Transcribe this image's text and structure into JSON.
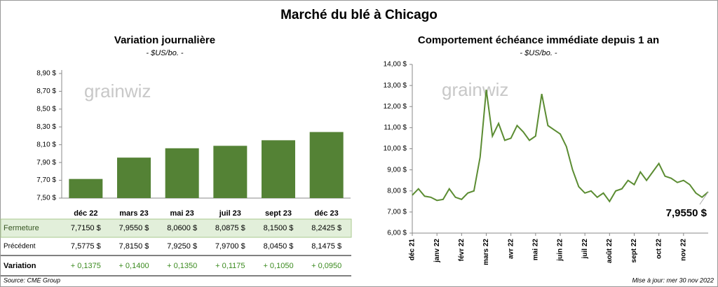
{
  "title": "Marché du blé à Chicago",
  "chart_data": [
    {
      "type": "bar",
      "title": "Variation journalière",
      "subtitle": "- $US/bo. -",
      "watermark": "grainwiz",
      "categories": [
        "déc 22",
        "mars 23",
        "mai 23",
        "juil 23",
        "sept 23",
        "déc 23"
      ],
      "values": [
        7.715,
        7.955,
        8.06,
        8.0875,
        8.15,
        8.2425
      ],
      "color": "#548235",
      "ylim": [
        7.5,
        8.9
      ],
      "yticks": [
        {
          "value": 7.5,
          "label": "7,50 $"
        },
        {
          "value": 7.7,
          "label": "7,70 $"
        },
        {
          "value": 7.9,
          "label": "7,90 $"
        },
        {
          "value": 8.1,
          "label": "8,10 $"
        },
        {
          "value": 8.3,
          "label": "8,30 $"
        },
        {
          "value": 8.5,
          "label": "8,50 $"
        },
        {
          "value": 8.7,
          "label": "8,70 $"
        },
        {
          "value": 8.9,
          "label": "8,90 $"
        }
      ],
      "grid": false
    },
    {
      "type": "line",
      "title": "Comportement  échéance immédiate depuis 1 an",
      "subtitle": "- $US/bo. -",
      "watermark": "grainwiz",
      "x": [
        0,
        0.25,
        0.5,
        0.75,
        1,
        1.25,
        1.5,
        1.75,
        2,
        2.25,
        2.5,
        2.75,
        3,
        3.25,
        3.5,
        3.75,
        4,
        4.25,
        4.5,
        4.75,
        5,
        5.25,
        5.5,
        5.75,
        6,
        6.25,
        6.5,
        6.75,
        7,
        7.25,
        7.5,
        7.75,
        8,
        8.25,
        8.5,
        8.75,
        9,
        9.25,
        9.5,
        9.75,
        10,
        10.25,
        10.5,
        10.75,
        11,
        11.25,
        11.5,
        11.75,
        12
      ],
      "series": [
        {
          "color": "#5b8c32",
          "values": [
            7.8,
            8.1,
            7.75,
            7.7,
            7.55,
            7.6,
            8.1,
            7.7,
            7.6,
            7.9,
            8.0,
            9.6,
            12.8,
            10.6,
            11.2,
            10.4,
            10.5,
            11.1,
            10.8,
            10.4,
            10.6,
            12.6,
            11.1,
            10.9,
            10.7,
            10.1,
            9.0,
            8.2,
            7.9,
            8.0,
            7.7,
            7.9,
            7.5,
            8.0,
            8.1,
            8.5,
            8.3,
            8.9,
            8.5,
            8.9,
            9.3,
            8.7,
            8.6,
            8.4,
            8.5,
            8.3,
            7.9,
            7.7,
            7.955
          ]
        }
      ],
      "xlim": [
        0,
        12
      ],
      "xticks": [
        {
          "value": 0,
          "label": "déc 21"
        },
        {
          "value": 1,
          "label": "janv 22"
        },
        {
          "value": 2,
          "label": "févr 22"
        },
        {
          "value": 3,
          "label": "mars 22"
        },
        {
          "value": 4,
          "label": "avr 22"
        },
        {
          "value": 5,
          "label": "mai 22"
        },
        {
          "value": 6,
          "label": "juin 22"
        },
        {
          "value": 7,
          "label": "juil 22"
        },
        {
          "value": 8,
          "label": "août 22"
        },
        {
          "value": 9,
          "label": "sept 22"
        },
        {
          "value": 10,
          "label": "oct 22"
        },
        {
          "value": 11,
          "label": "nov 22"
        }
      ],
      "ylim": [
        6,
        14
      ],
      "yticks": [
        {
          "value": 6,
          "label": "6,00 $"
        },
        {
          "value": 7,
          "label": "7,00 $"
        },
        {
          "value": 8,
          "label": "8,00 $"
        },
        {
          "value": 9,
          "label": "9,00 $"
        },
        {
          "value": 10,
          "label": "10,00 $"
        },
        {
          "value": 11,
          "label": "11,00 $"
        },
        {
          "value": 12,
          "label": "12,00 $"
        },
        {
          "value": 13,
          "label": "13,00 $"
        },
        {
          "value": 14,
          "label": "14,00 $"
        }
      ],
      "annotation": "7,9550 $",
      "grid": false
    }
  ],
  "table": {
    "rows": [
      [
        "Fermeture",
        "7,7150 $",
        "7,9550 $",
        "8,0600 $",
        "8,0875 $",
        "8,1500 $",
        "8,2425 $"
      ],
      [
        "Précédent",
        "7,5775 $",
        "7,8150 $",
        "7,9250 $",
        "7,9700 $",
        "8,0450 $",
        "8,1475 $"
      ],
      [
        "Variation",
        "+ 0,1375",
        "+ 0,1400",
        "+ 0,1350",
        "+ 0,1175",
        "+ 0,1050",
        "+ 0,0950"
      ]
    ]
  },
  "footer": {
    "source": "Source: CME Group",
    "updated": "Mise à jour: mer 30 nov 2022"
  }
}
